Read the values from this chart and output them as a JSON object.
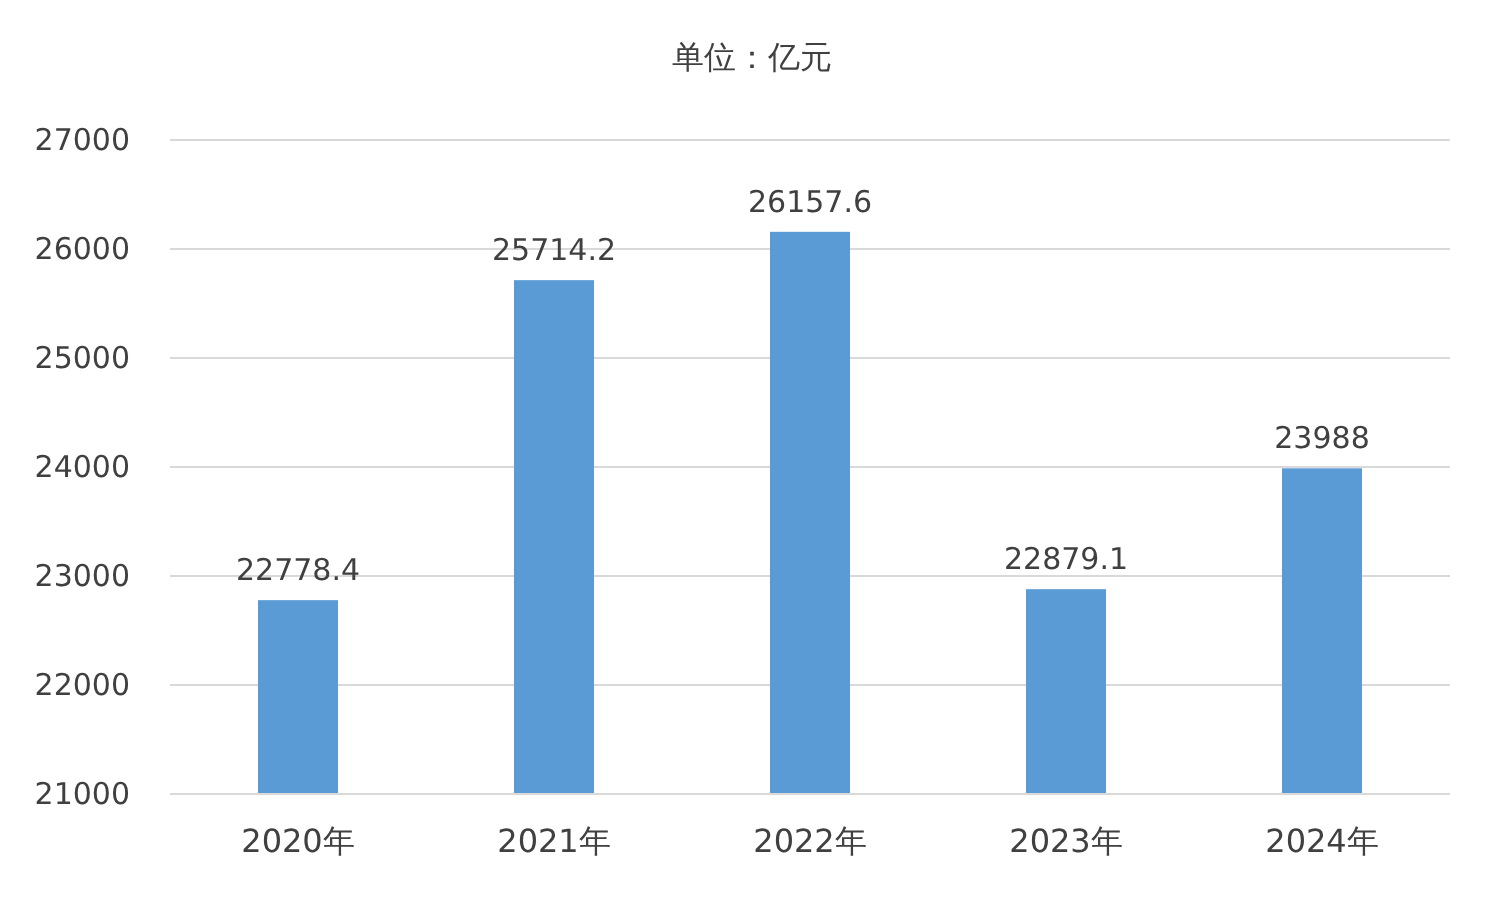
{
  "chart_data": {
    "type": "bar",
    "title": "单位：亿元",
    "categories": [
      "2020年",
      "2021年",
      "2022年",
      "2023年",
      "2024年"
    ],
    "values": [
      22778.4,
      25714.2,
      26157.6,
      22879.1,
      23988
    ],
    "color": "#5b9bd5",
    "ylim": [
      21000,
      27000
    ],
    "yticks": [
      21000,
      22000,
      23000,
      24000,
      25000,
      26000,
      27000
    ],
    "grid": "y",
    "data_labels": true
  }
}
